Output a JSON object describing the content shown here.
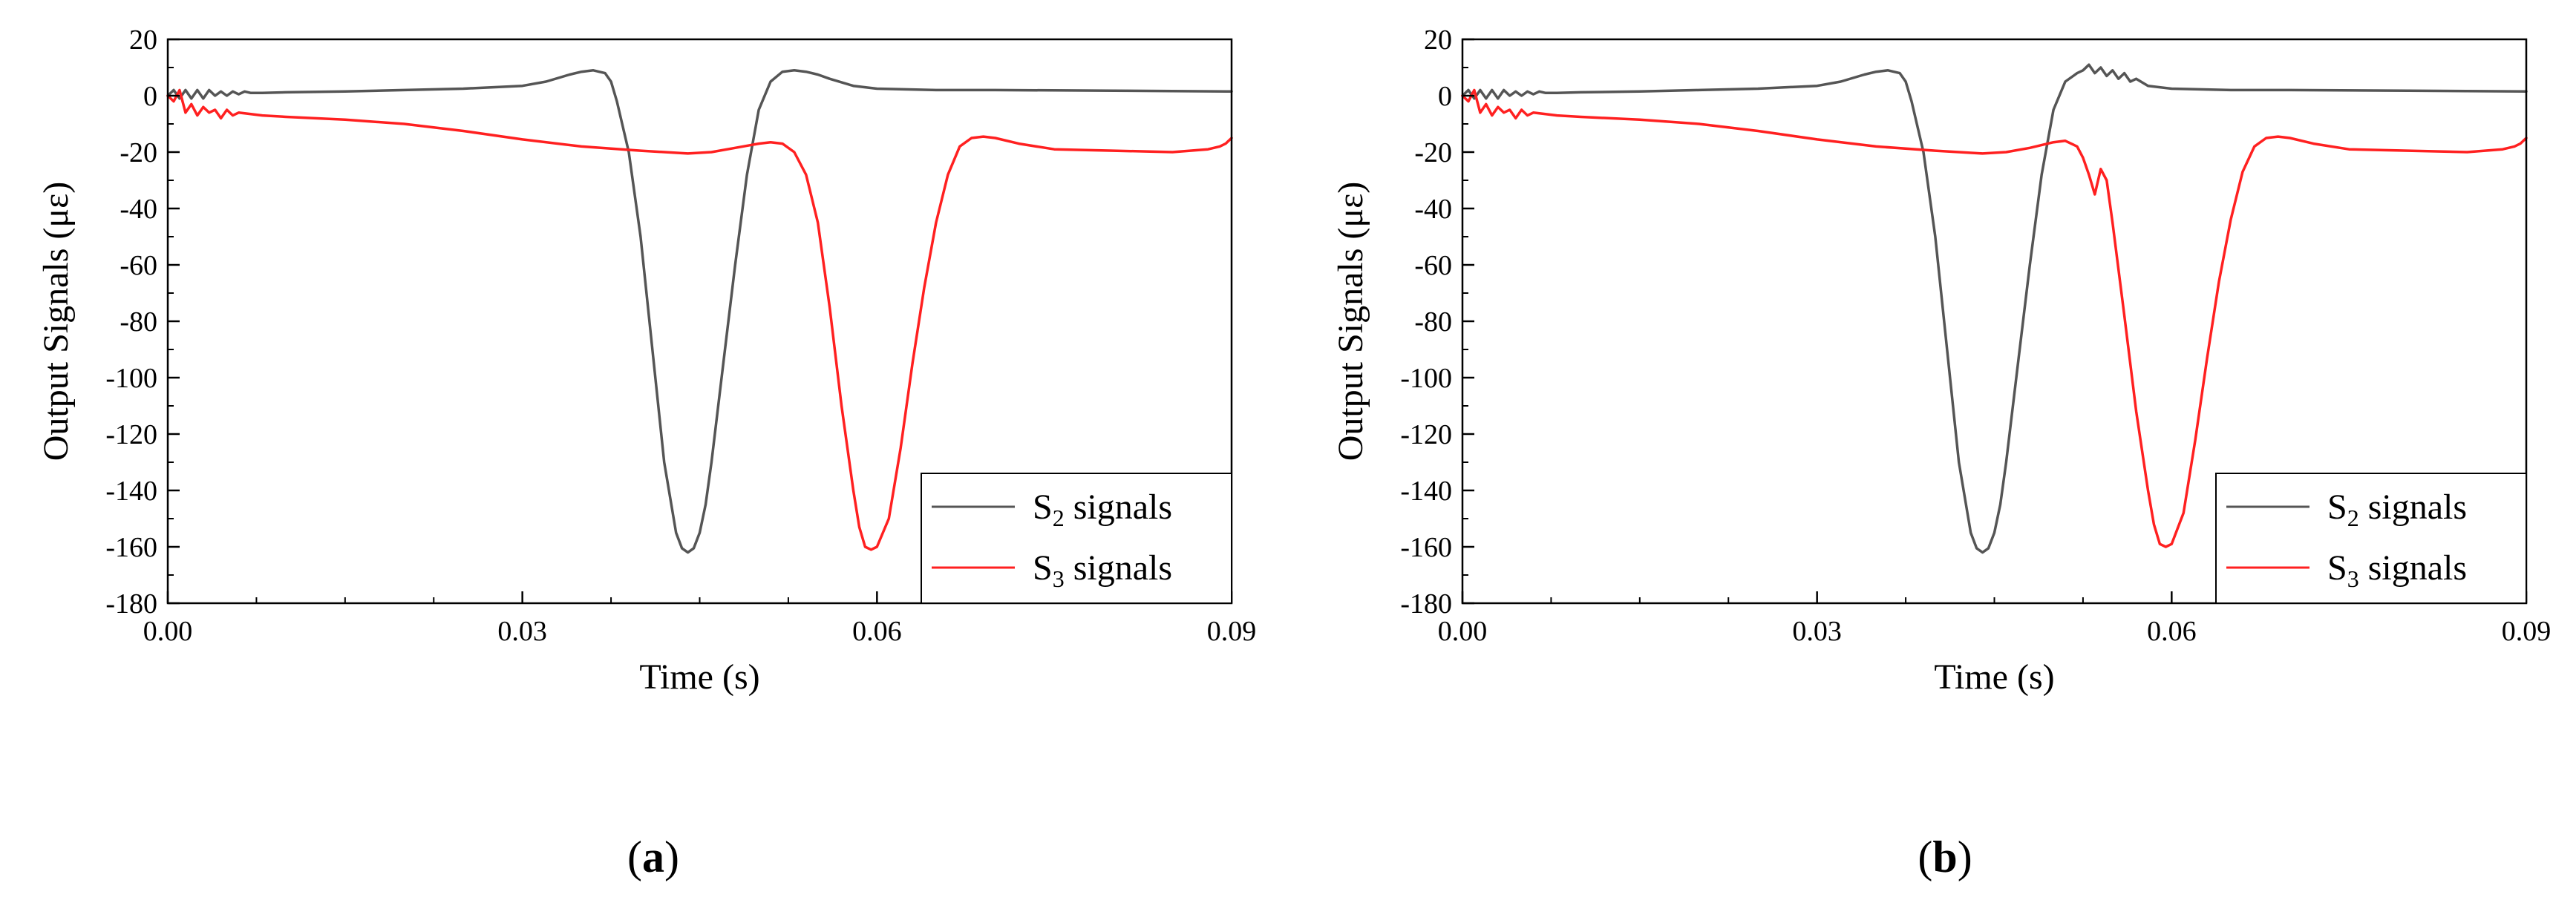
{
  "chart_data": [
    {
      "id": "a",
      "panel_label": "a",
      "type": "line",
      "xlabel": "Time (s)",
      "ylabel": "Output Signals (με)",
      "xlim": [
        0,
        0.09
      ],
      "ylim": [
        -180,
        20
      ],
      "xticks": [
        0,
        0.03,
        0.06,
        0.09
      ],
      "xtick_labels": [
        "0.00",
        "0.03",
        "0.06",
        "0.09"
      ],
      "yticks": [
        20,
        0,
        -20,
        -40,
        -60,
        -80,
        -100,
        -120,
        -140,
        -160,
        -180
      ],
      "ytick_labels": [
        "20",
        "0",
        "-20",
        "-40",
        "-60",
        "-80",
        "-100",
        "-120",
        "-140",
        "-160",
        "-180"
      ],
      "legend_position": "bottom-right",
      "series": [
        {
          "name": "S2 signals",
          "legend_main": "S",
          "legend_sub": "2",
          "legend_rest": " signals",
          "color": "#555555",
          "x": [
            0,
            0.0005,
            0.001,
            0.0015,
            0.002,
            0.0025,
            0.003,
            0.0035,
            0.004,
            0.0045,
            0.005,
            0.0055,
            0.006,
            0.0065,
            0.007,
            0.008,
            0.01,
            0.015,
            0.02,
            0.025,
            0.03,
            0.032,
            0.034,
            0.035,
            0.036,
            0.037,
            0.0375,
            0.038,
            0.039,
            0.04,
            0.041,
            0.042,
            0.043,
            0.0435,
            0.044,
            0.0445,
            0.045,
            0.0455,
            0.046,
            0.047,
            0.048,
            0.049,
            0.05,
            0.051,
            0.052,
            0.053,
            0.054,
            0.055,
            0.056,
            0.058,
            0.06,
            0.065,
            0.07,
            0.08,
            0.09
          ],
          "y": [
            0,
            2,
            -1,
            2,
            -1,
            2,
            -1,
            2,
            0,
            1.5,
            0,
            1.5,
            0.5,
            1.5,
            1,
            1,
            1.2,
            1.5,
            2,
            2.5,
            3.5,
            5,
            7.5,
            8.5,
            9,
            8,
            5,
            -2,
            -20,
            -50,
            -90,
            -130,
            -155,
            -160.5,
            -162,
            -160.5,
            -155,
            -145,
            -130,
            -95,
            -60,
            -28,
            -5,
            5,
            8.5,
            9,
            8.5,
            7.5,
            6,
            3.5,
            2.5,
            2,
            2,
            1.8,
            1.5
          ]
        },
        {
          "name": "S3 signals",
          "legend_main": "S",
          "legend_sub": "3",
          "legend_rest": " signals",
          "color": "#ff2020",
          "x": [
            0,
            0.0005,
            0.001,
            0.0015,
            0.002,
            0.0025,
            0.003,
            0.0035,
            0.004,
            0.0045,
            0.005,
            0.0055,
            0.006,
            0.008,
            0.01,
            0.015,
            0.02,
            0.025,
            0.03,
            0.035,
            0.04,
            0.044,
            0.046,
            0.048,
            0.05,
            0.051,
            0.052,
            0.053,
            0.054,
            0.055,
            0.056,
            0.057,
            0.058,
            0.0585,
            0.059,
            0.0595,
            0.06,
            0.061,
            0.062,
            0.063,
            0.064,
            0.065,
            0.066,
            0.067,
            0.068,
            0.069,
            0.07,
            0.072,
            0.075,
            0.08,
            0.085,
            0.088,
            0.089,
            0.0895,
            0.09
          ],
          "y": [
            0,
            -2,
            2,
            -6,
            -3,
            -7,
            -4,
            -6,
            -5,
            -8,
            -5,
            -7,
            -6,
            -7,
            -7.5,
            -8.5,
            -10,
            -12.5,
            -15.5,
            -18,
            -19.5,
            -20.5,
            -20,
            -18.5,
            -17,
            -16.5,
            -17,
            -20,
            -28,
            -45,
            -75,
            -110,
            -140,
            -153,
            -160,
            -161,
            -160,
            -150,
            -125,
            -95,
            -68,
            -45,
            -28,
            -18,
            -15,
            -14.5,
            -15,
            -17,
            -19,
            -19.5,
            -20,
            -19,
            -18,
            -17,
            -15
          ]
        }
      ]
    },
    {
      "id": "b",
      "panel_label": "b",
      "type": "line",
      "xlabel": "Time (s)",
      "ylabel": "Output Signals (με)",
      "xlim": [
        0,
        0.09
      ],
      "ylim": [
        -180,
        20
      ],
      "xticks": [
        0,
        0.03,
        0.06,
        0.09
      ],
      "xtick_labels": [
        "0.00",
        "0.03",
        "0.06",
        "0.09"
      ],
      "yticks": [
        20,
        0,
        -20,
        -40,
        -60,
        -80,
        -100,
        -120,
        -140,
        -160,
        -180
      ],
      "ytick_labels": [
        "20",
        "0",
        "-20",
        "-40",
        "-60",
        "-80",
        "-100",
        "-120",
        "-140",
        "-160",
        "-180"
      ],
      "legend_position": "bottom-right",
      "series": [
        {
          "name": "S2 signals",
          "legend_main": "S",
          "legend_sub": "2",
          "legend_rest": " signals",
          "color": "#555555",
          "x": [
            0,
            0.0005,
            0.001,
            0.0015,
            0.002,
            0.0025,
            0.003,
            0.0035,
            0.004,
            0.0045,
            0.005,
            0.0055,
            0.006,
            0.0065,
            0.007,
            0.008,
            0.01,
            0.015,
            0.02,
            0.025,
            0.03,
            0.032,
            0.034,
            0.035,
            0.036,
            0.037,
            0.0375,
            0.038,
            0.039,
            0.04,
            0.041,
            0.042,
            0.043,
            0.0435,
            0.044,
            0.0445,
            0.045,
            0.0455,
            0.046,
            0.047,
            0.048,
            0.049,
            0.05,
            0.051,
            0.052,
            0.0525,
            0.053,
            0.0535,
            0.054,
            0.0545,
            0.055,
            0.0555,
            0.056,
            0.0565,
            0.057,
            0.058,
            0.06,
            0.065,
            0.07,
            0.08,
            0.09
          ],
          "y": [
            0,
            2,
            -1,
            2,
            -1,
            2,
            -1,
            2,
            0,
            1.5,
            0,
            1.5,
            0.5,
            1.5,
            1,
            1,
            1.2,
            1.5,
            2,
            2.5,
            3.5,
            5,
            7.5,
            8.5,
            9,
            8,
            5,
            -2,
            -20,
            -50,
            -90,
            -130,
            -155,
            -160.5,
            -162,
            -160.5,
            -155,
            -145,
            -130,
            -95,
            -60,
            -28,
            -5,
            5,
            8,
            9,
            11,
            8,
            10,
            7,
            9,
            6,
            8,
            5,
            6,
            3.5,
            2.5,
            2,
            2,
            1.8,
            1.5
          ]
        },
        {
          "name": "S3 signals",
          "legend_main": "S",
          "legend_sub": "3",
          "legend_rest": " signals",
          "color": "#ff2020",
          "x": [
            0,
            0.0005,
            0.001,
            0.0015,
            0.002,
            0.0025,
            0.003,
            0.0035,
            0.004,
            0.0045,
            0.005,
            0.0055,
            0.006,
            0.008,
            0.01,
            0.015,
            0.02,
            0.025,
            0.03,
            0.035,
            0.04,
            0.044,
            0.046,
            0.048,
            0.05,
            0.051,
            0.052,
            0.0525,
            0.053,
            0.0535,
            0.054,
            0.0545,
            0.055,
            0.056,
            0.057,
            0.058,
            0.0585,
            0.059,
            0.0595,
            0.06,
            0.061,
            0.062,
            0.063,
            0.064,
            0.065,
            0.066,
            0.067,
            0.068,
            0.069,
            0.07,
            0.072,
            0.075,
            0.08,
            0.085,
            0.088,
            0.089,
            0.0895,
            0.09
          ],
          "y": [
            0,
            -2,
            2,
            -6,
            -3,
            -7,
            -4,
            -6,
            -5,
            -8,
            -5,
            -7,
            -6,
            -7,
            -7.5,
            -8.5,
            -10,
            -12.5,
            -15.5,
            -18,
            -19.5,
            -20.5,
            -20,
            -18.5,
            -16.5,
            -16,
            -18,
            -22,
            -28,
            -35,
            -26,
            -30,
            -45,
            -78,
            -112,
            -140,
            -152,
            -159,
            -160,
            -159,
            -148,
            -122,
            -93,
            -66,
            -44,
            -27,
            -18,
            -15,
            -14.5,
            -15,
            -17,
            -19,
            -19.5,
            -20,
            -19,
            -18,
            -17,
            -15
          ]
        }
      ]
    }
  ]
}
